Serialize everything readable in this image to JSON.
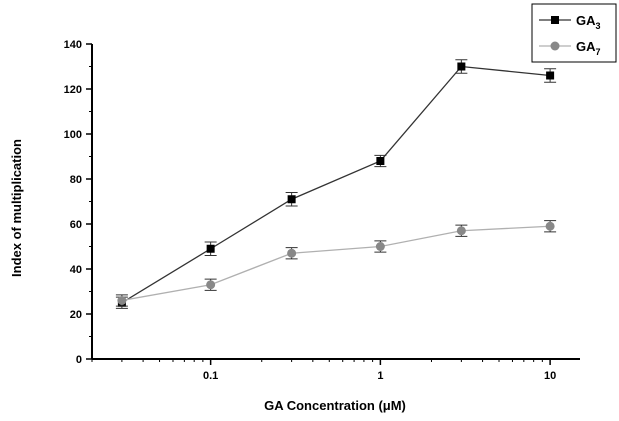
{
  "chart_data": {
    "type": "line",
    "xlabel": "GA Concentration (μM)",
    "ylabel": "Index of multiplication",
    "x_scale": "log",
    "xlim": [
      0.02,
      15
    ],
    "ylim": [
      0,
      140
    ],
    "x_ticks": [
      0.1,
      1,
      10
    ],
    "x_tick_labels": [
      "0.1",
      "1",
      "10"
    ],
    "y_ticks": [
      0,
      20,
      40,
      60,
      80,
      100,
      120,
      140
    ],
    "y_tick_labels": [
      "0",
      "20",
      "40",
      "60",
      "80",
      "100",
      "120",
      "140"
    ],
    "grid": false,
    "legend_position": "top-right",
    "x": [
      0.03,
      0.1,
      0.3,
      1,
      3,
      10
    ],
    "series": [
      {
        "name": "GA3",
        "label_main": "GA",
        "label_sub": "3",
        "values": [
          25,
          49,
          71,
          88,
          130,
          126
        ],
        "errors": [
          2.5,
          3,
          3,
          2.5,
          3,
          3
        ],
        "marker": "square",
        "color": "#000000",
        "line_color": "#333333"
      },
      {
        "name": "GA7",
        "label_main": "GA",
        "label_sub": "7",
        "values": [
          26,
          33,
          47,
          50,
          57,
          59
        ],
        "errors": [
          2.5,
          2.5,
          2.5,
          2.5,
          2.5,
          2.5
        ],
        "marker": "circle",
        "color": "#888888",
        "line_color": "#b0b0b0"
      }
    ]
  }
}
